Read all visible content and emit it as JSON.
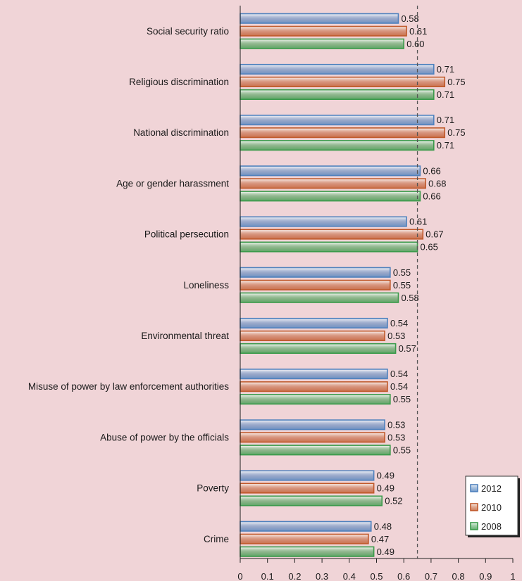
{
  "chart_data": {
    "type": "bar",
    "orientation": "horizontal",
    "categories": [
      "Social security ratio",
      "Religious discrimination",
      "National discrimination",
      "Age or gender harassment",
      "Political persecution",
      "Loneliness",
      "Environmental threat",
      "Misuse of power by law enforcement authorities",
      "Abuse of power by the officials",
      "Poverty",
      "Crime"
    ],
    "series": [
      {
        "name": "2012",
        "color": "#4f81bd",
        "values": [
          0.58,
          0.71,
          0.71,
          0.66,
          0.61,
          0.55,
          0.54,
          0.54,
          0.53,
          0.49,
          0.48
        ],
        "labels": [
          "0.58",
          "0.71",
          "0.71",
          "0.66",
          "0.61",
          "0.55",
          "0.54",
          "0.54",
          "0.53",
          "0.49",
          "0.48"
        ]
      },
      {
        "name": "2010",
        "color": "#c0592b",
        "values": [
          0.61,
          0.75,
          0.75,
          0.68,
          0.67,
          0.55,
          0.53,
          0.54,
          0.53,
          0.49,
          0.47
        ],
        "labels": [
          "0.61",
          "0.75",
          "0.75",
          "0.68",
          "0.67",
          "0.55",
          "0.53",
          "0.54",
          "0.53",
          "0.49",
          "0.47"
        ]
      },
      {
        "name": "2008",
        "color": "#3a9a4a",
        "values": [
          0.6,
          0.71,
          0.71,
          0.66,
          0.65,
          0.58,
          0.57,
          0.55,
          0.55,
          0.52,
          0.49
        ],
        "labels": [
          "0.60",
          "0.71",
          "0.71",
          "0.66",
          "0.65",
          "0.58",
          "0.57",
          "0.55",
          "0.55",
          "0.52",
          "0.49"
        ]
      }
    ],
    "title": "",
    "xlabel": "",
    "ylabel": "",
    "xlim": [
      0,
      1
    ],
    "x_ticks": [
      "0",
      "0.1",
      "0.2",
      "0.3",
      "0.4",
      "0.5",
      "0.6",
      "0.7",
      "0.8",
      "0.9",
      "1"
    ],
    "reference_line": {
      "value": 0.65,
      "style": "dashed"
    },
    "grid": false,
    "legend_position": "bottom-right",
    "legend_order": [
      "2012",
      "2010",
      "2008"
    ]
  }
}
